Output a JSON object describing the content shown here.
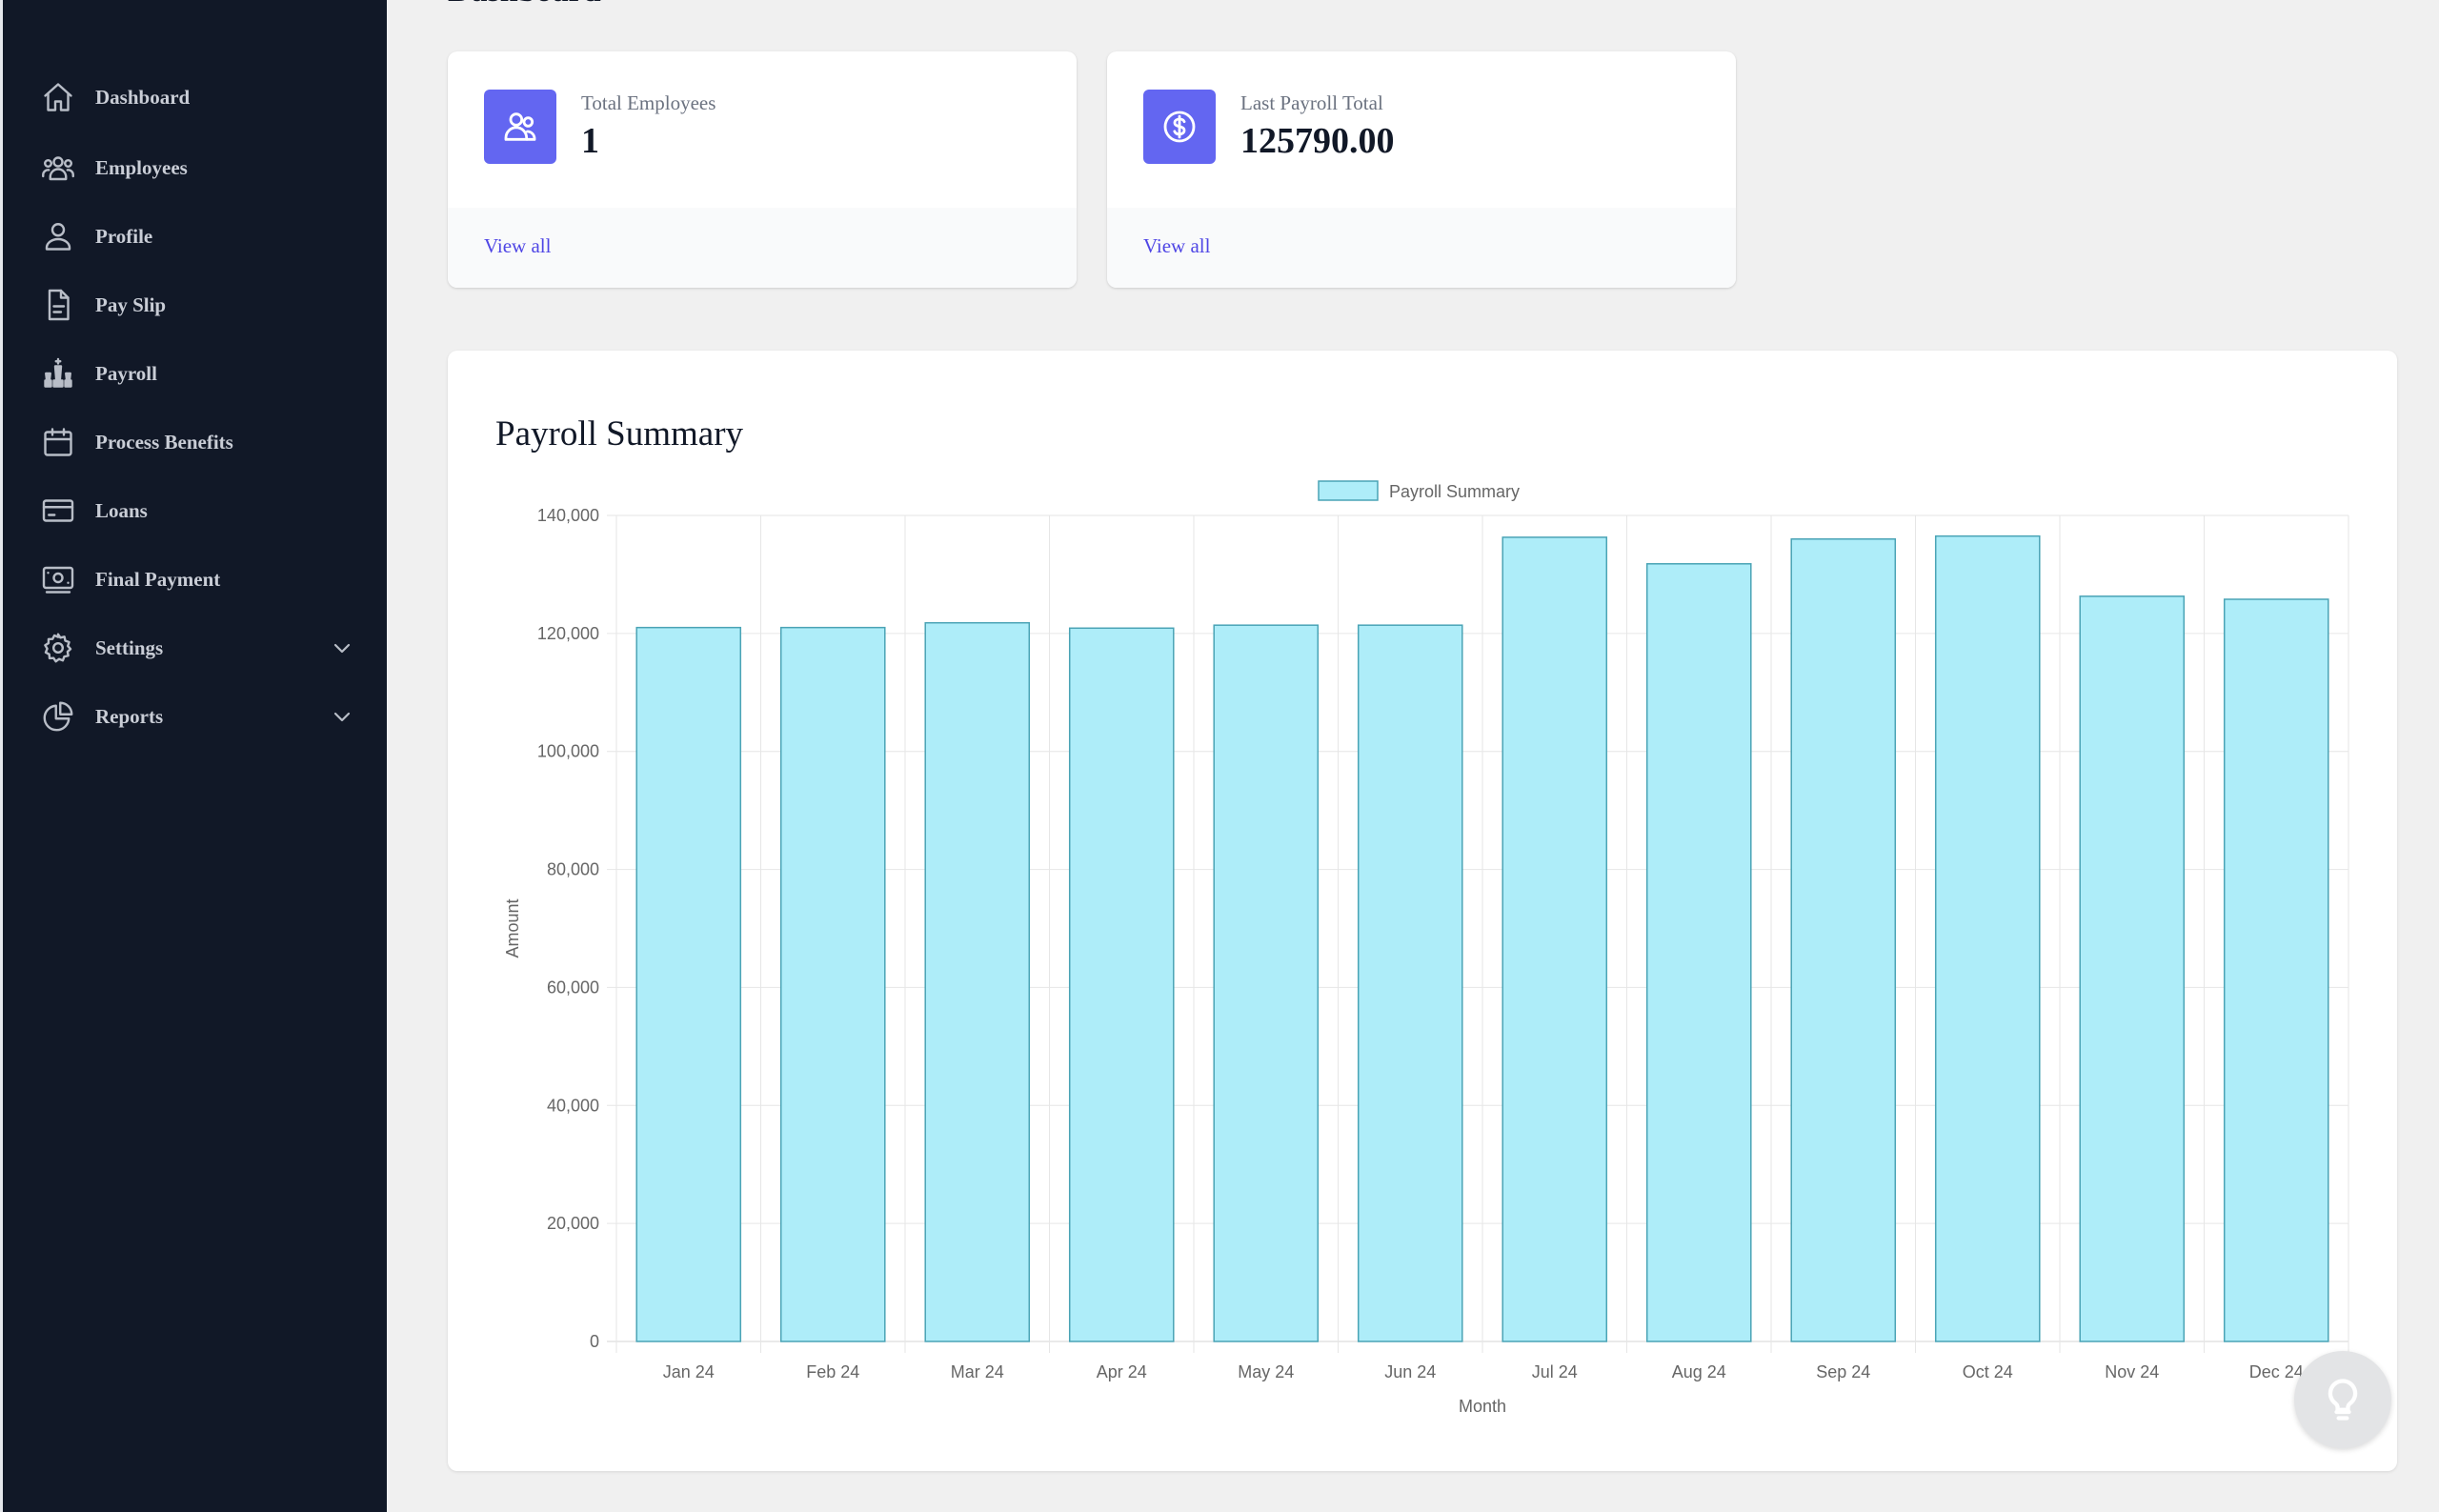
{
  "page": {
    "heading": "Dashboard"
  },
  "sidebar": {
    "items": [
      {
        "label": "Dashboard",
        "icon": "home-icon"
      },
      {
        "label": "Employees",
        "icon": "users-icon"
      },
      {
        "label": "Profile",
        "icon": "user-icon"
      },
      {
        "label": "Pay Slip",
        "icon": "document-icon"
      },
      {
        "label": "Payroll",
        "icon": "chess-icon"
      },
      {
        "label": "Process Benefits",
        "icon": "calendar-icon"
      },
      {
        "label": "Loans",
        "icon": "credit-card-icon"
      },
      {
        "label": "Final Payment",
        "icon": "banknote-icon"
      },
      {
        "label": "Settings",
        "icon": "cog-icon",
        "expandable": true
      },
      {
        "label": "Reports",
        "icon": "pie-chart-icon",
        "expandable": true
      }
    ]
  },
  "cards": [
    {
      "label": "Total Employees",
      "value": "1",
      "link": "View all",
      "icon": "users-icon"
    },
    {
      "label": "Last Payroll Total",
      "value": "125790.00",
      "link": "View all",
      "icon": "dollar-circle-icon"
    }
  ],
  "colors": {
    "accent": "#6366f1",
    "link": "#4f46e5",
    "sidebar": "#111827",
    "bar_fill": "#aeedf9",
    "bar_border": "#4aa3b5"
  },
  "chart_panel": {
    "title": "Payroll Summary"
  },
  "chart_data": {
    "type": "bar",
    "categories": [
      "Jan 24",
      "Feb 24",
      "Mar 24",
      "Apr 24",
      "May 24",
      "Jun 24",
      "Jul 24",
      "Aug 24",
      "Sep 24",
      "Oct 24",
      "Nov 24",
      "Dec 24"
    ],
    "series": [
      {
        "name": "Payroll Summary",
        "values": [
          121000,
          121000,
          121800,
          120900,
          121400,
          121400,
          136300,
          131800,
          136000,
          136500,
          126300,
          125790
        ]
      }
    ],
    "xlabel": "Month",
    "ylabel": "Amount",
    "ylim": [
      0,
      140000
    ],
    "yticks": [
      "0",
      "20,000",
      "40,000",
      "60,000",
      "80,000",
      "100,000",
      "120,000",
      "140,000"
    ],
    "grid": true,
    "legend": "top-center"
  }
}
